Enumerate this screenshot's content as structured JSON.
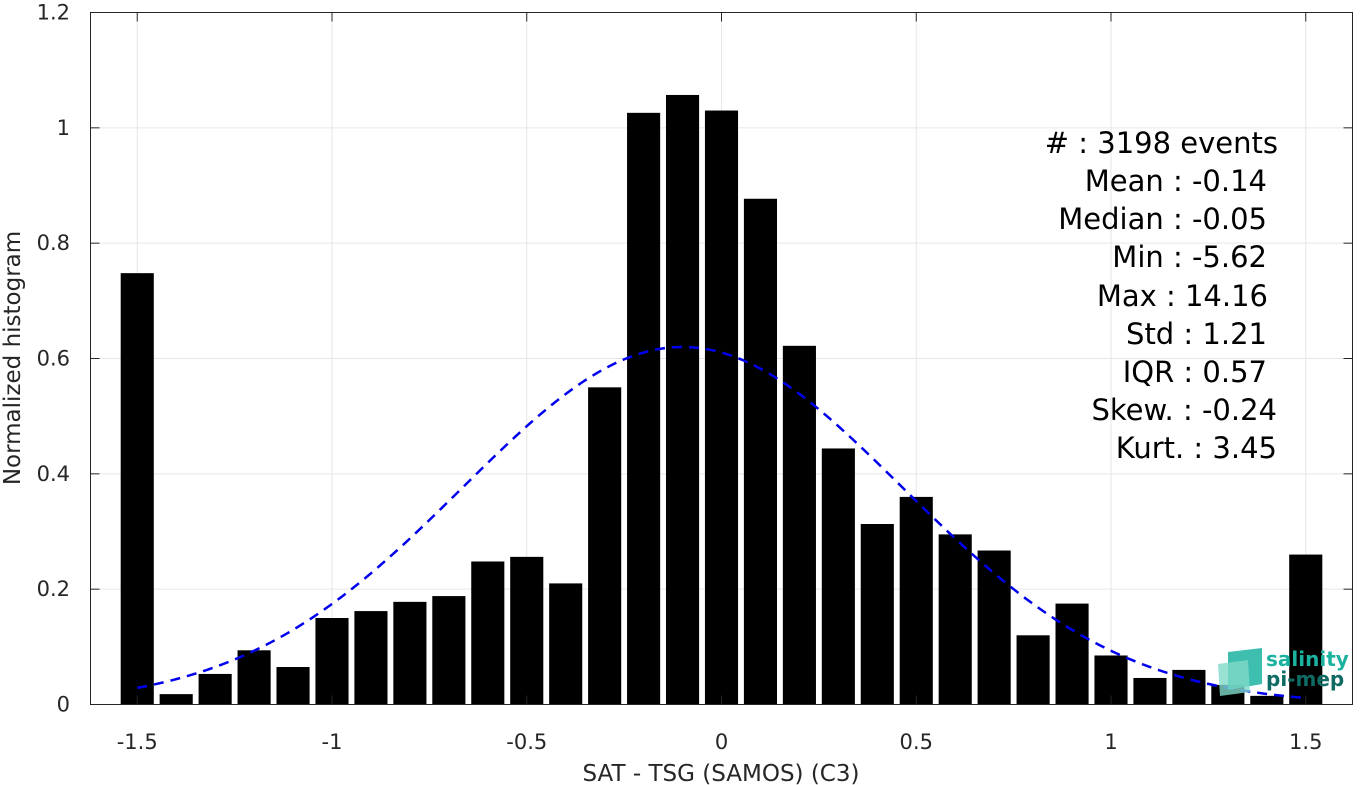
{
  "chart_data": {
    "type": "bar",
    "xlabel": "SAT - TSG (SAMOS) (C3)",
    "ylabel": "Normalized histogram",
    "xlim": [
      -1.62,
      1.62
    ],
    "ylim": [
      0,
      1.2
    ],
    "grid": true,
    "bar_width": 0.085,
    "x": [
      -1.5,
      -1.4,
      -1.3,
      -1.2,
      -1.1,
      -1.0,
      -0.9,
      -0.8,
      -0.7,
      -0.6,
      -0.5,
      -0.4,
      -0.3,
      -0.2,
      -0.1,
      0.0,
      0.1,
      0.2,
      0.3,
      0.4,
      0.5,
      0.6,
      0.7,
      0.8,
      0.9,
      1.0,
      1.1,
      1.2,
      1.3,
      1.4,
      1.5
    ],
    "values": [
      0.748,
      0.018,
      0.053,
      0.094,
      0.065,
      0.15,
      0.162,
      0.178,
      0.188,
      0.248,
      0.256,
      0.21,
      0.55,
      1.026,
      1.057,
      1.03,
      0.877,
      0.622,
      0.444,
      0.313,
      0.36,
      0.295,
      0.267,
      0.12,
      0.175,
      0.085,
      0.046,
      0.06,
      0.034,
      0.015,
      0.26
    ],
    "fit_curve": {
      "type": "gaussian",
      "mean": -0.1,
      "peak": 0.62,
      "sigma": 0.565,
      "x_range": [
        -1.5,
        1.5
      ],
      "color": "#0000ee",
      "style": "dashed"
    },
    "bar_color": "#000000",
    "xticks": [
      -1.5,
      -1,
      -0.5,
      0,
      0.5,
      1,
      1.5
    ],
    "xtick_labels": [
      "-1.5",
      "-1",
      "-0.5",
      "0",
      "0.5",
      "1",
      "1.5"
    ],
    "yticks": [
      0,
      0.2,
      0.4,
      0.6,
      0.8,
      1,
      1.2
    ],
    "ytick_labels": [
      "0",
      "0.2",
      "0.4",
      "0.6",
      "0.8",
      "1",
      "1.2"
    ]
  },
  "stats": [
    "#  : 3198 events",
    "Mean : -0.14",
    "Median : -0.05",
    "Min : -5.62",
    "Max : 14.16",
    "Std : 1.21",
    "IQR : 0.57",
    "Skew. : -0.24",
    "Kurt. : 3.45"
  ],
  "logo": {
    "line1": "salinity",
    "line2": "pi-mep",
    "color1": "#1bb3a0",
    "color2": "#0f6b63"
  }
}
